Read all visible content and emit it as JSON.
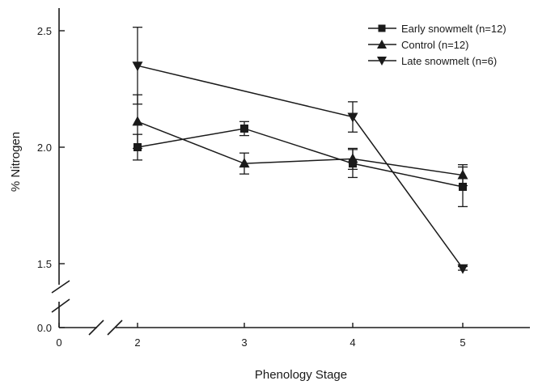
{
  "chart_data": {
    "type": "line",
    "xlabel": "Phenology Stage",
    "ylabel": "% Nitrogen",
    "x": [
      2,
      3,
      4,
      5
    ],
    "x_ticks": [
      "0",
      "2",
      "3",
      "4",
      "5"
    ],
    "y_ticks": [
      "0.0",
      "1.5",
      "2.0",
      "2.5"
    ],
    "ylim": [
      1.5,
      2.5
    ],
    "axis_break": {
      "x": "between 0 and 2",
      "y": "between 0.0 and 1.5"
    },
    "legend_position": "top-right",
    "grid": false,
    "series": [
      {
        "name": "Early snowmelt (n=12)",
        "marker": "square",
        "values": [
          2.0,
          2.08,
          1.93,
          1.83
        ],
        "errors": [
          0.055,
          0.03,
          0.06,
          0.085
        ]
      },
      {
        "name": "Control (n=12)",
        "marker": "triangle-up",
        "values": [
          2.11,
          1.93,
          1.95,
          1.88
        ],
        "errors": [
          0.115,
          0.045,
          0.045,
          0.045
        ]
      },
      {
        "name": "Late snowmelt (n=6)",
        "marker": "triangle-down",
        "values": [
          2.35,
          null,
          2.13,
          1.48
        ],
        "errors": [
          0.165,
          null,
          0.065,
          0.008
        ]
      }
    ]
  }
}
